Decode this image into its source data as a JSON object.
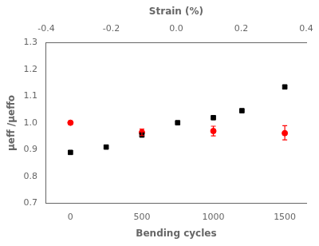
{
  "chart_data": {
    "type": "scatter",
    "xlabel": "Bending cycles",
    "x2label": "Strain (%)",
    "ylabel": "μeff /μeffo",
    "series": [
      {
        "color": "#000000",
        "marker": "square",
        "x": [
          0,
          250,
          500,
          750,
          1000,
          1200,
          1500
        ],
        "values": [
          0.89,
          0.91,
          0.955,
          1.001,
          1.02,
          1.046,
          1.135
        ]
      },
      {
        "color": "#ff0000",
        "marker": "circle",
        "x": [
          0,
          500,
          1000,
          1500
        ],
        "values": [
          1.001,
          0.965,
          0.97,
          0.962
        ],
        "yerr_lo": [
          0.003,
          0.012,
          0.018,
          0.025
        ],
        "yerr_hi": [
          0.003,
          0.012,
          0.018,
          0.028
        ]
      }
    ],
    "xlim": [
      -170,
      1650
    ],
    "xticks": [
      0,
      500,
      1000,
      1500
    ],
    "x2lim": [
      -0.4,
      0.4
    ],
    "x2ticks": [
      -0.4,
      -0.2,
      {
        "value": 0.0,
        "label": "0.0"
      },
      0.2,
      0.4
    ],
    "ylim": [
      0.7,
      1.3
    ],
    "yticks": [
      0.7,
      0.8,
      0.9,
      {
        "value": 1.0,
        "label": "1.0"
      },
      1.1,
      1.2,
      1.3
    ],
    "grid": false
  }
}
